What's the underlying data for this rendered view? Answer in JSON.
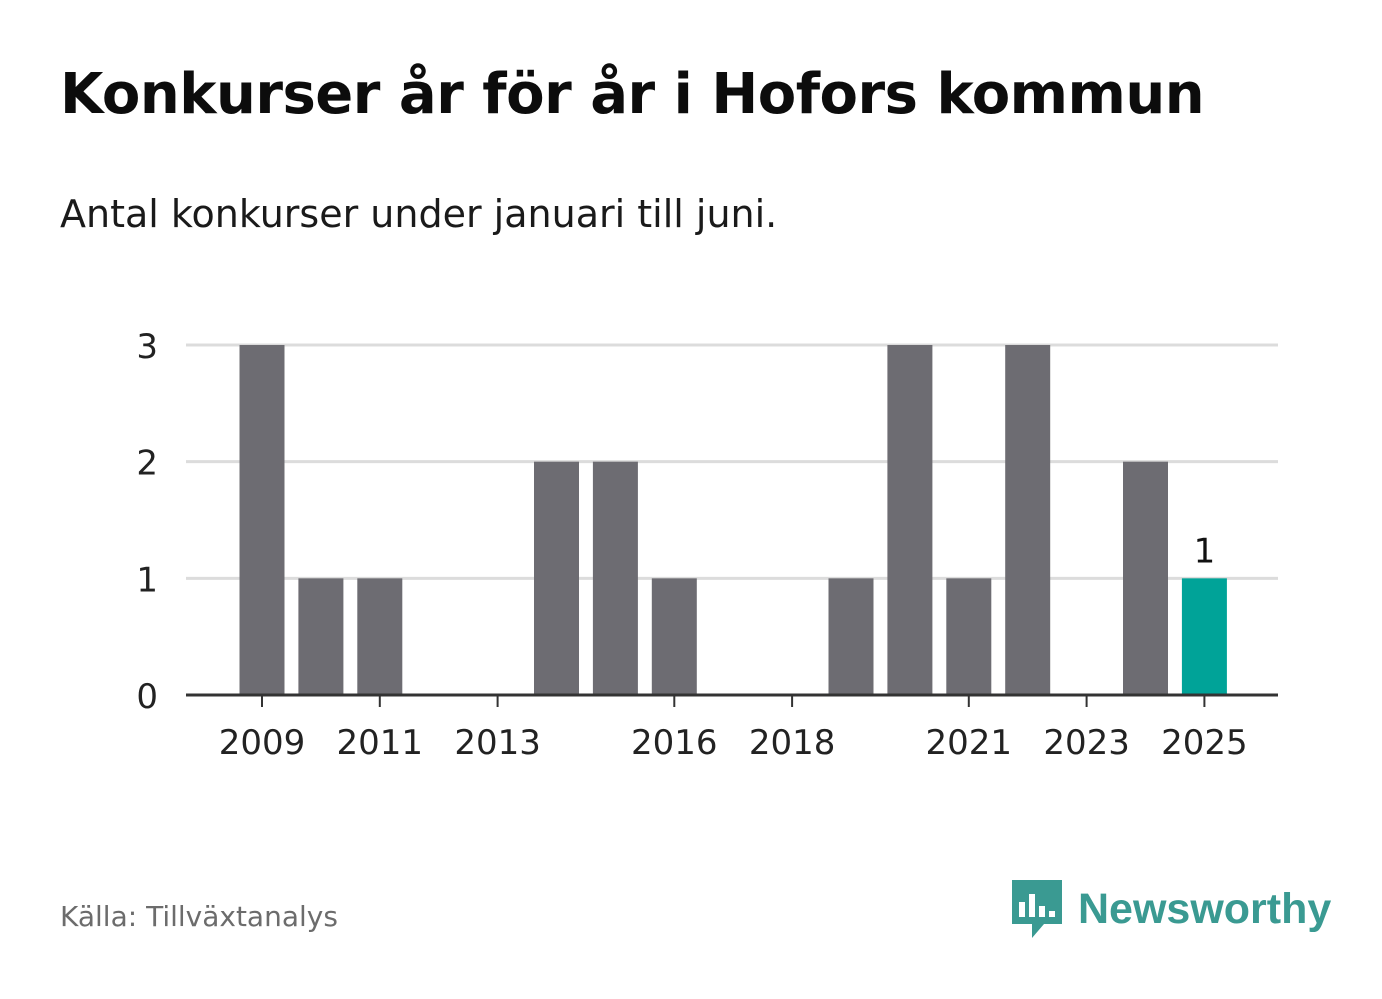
{
  "header": {
    "title": "Konkurser år för år i Hofors kommun",
    "subtitle": "Antal konkurser under januari till juni."
  },
  "footer": {
    "source": "Källa: Tillväxtanalys",
    "brand": "Newsworthy",
    "brand_icon": "newsworthy-bar-chart-bubble-icon",
    "brand_color": "#3a9a92"
  },
  "chart_data": {
    "type": "bar",
    "title": "",
    "xlabel": "",
    "ylabel": "",
    "ylim": [
      0,
      3
    ],
    "yticks": [
      0,
      1,
      2,
      3
    ],
    "grid": true,
    "legend": "none",
    "categories": [
      "2009",
      "2010",
      "2011",
      "2012",
      "2013",
      "2014",
      "2015",
      "2016",
      "2017",
      "2018",
      "2019",
      "2020",
      "2021",
      "2022",
      "2023",
      "2024",
      "2025"
    ],
    "x_tick_labels": [
      "2009",
      "2011",
      "2013",
      "2016",
      "2018",
      "2021",
      "2023",
      "2025"
    ],
    "values": [
      3,
      1,
      1,
      0,
      0,
      2,
      2,
      1,
      0,
      0,
      1,
      3,
      1,
      3,
      0,
      2,
      1
    ],
    "highlight_index": 16,
    "highlight_label": "1",
    "colors": {
      "bar": "#6d6c72",
      "highlight": "#00a398",
      "grid": "#dcdcdc",
      "axis": "#333333"
    }
  }
}
